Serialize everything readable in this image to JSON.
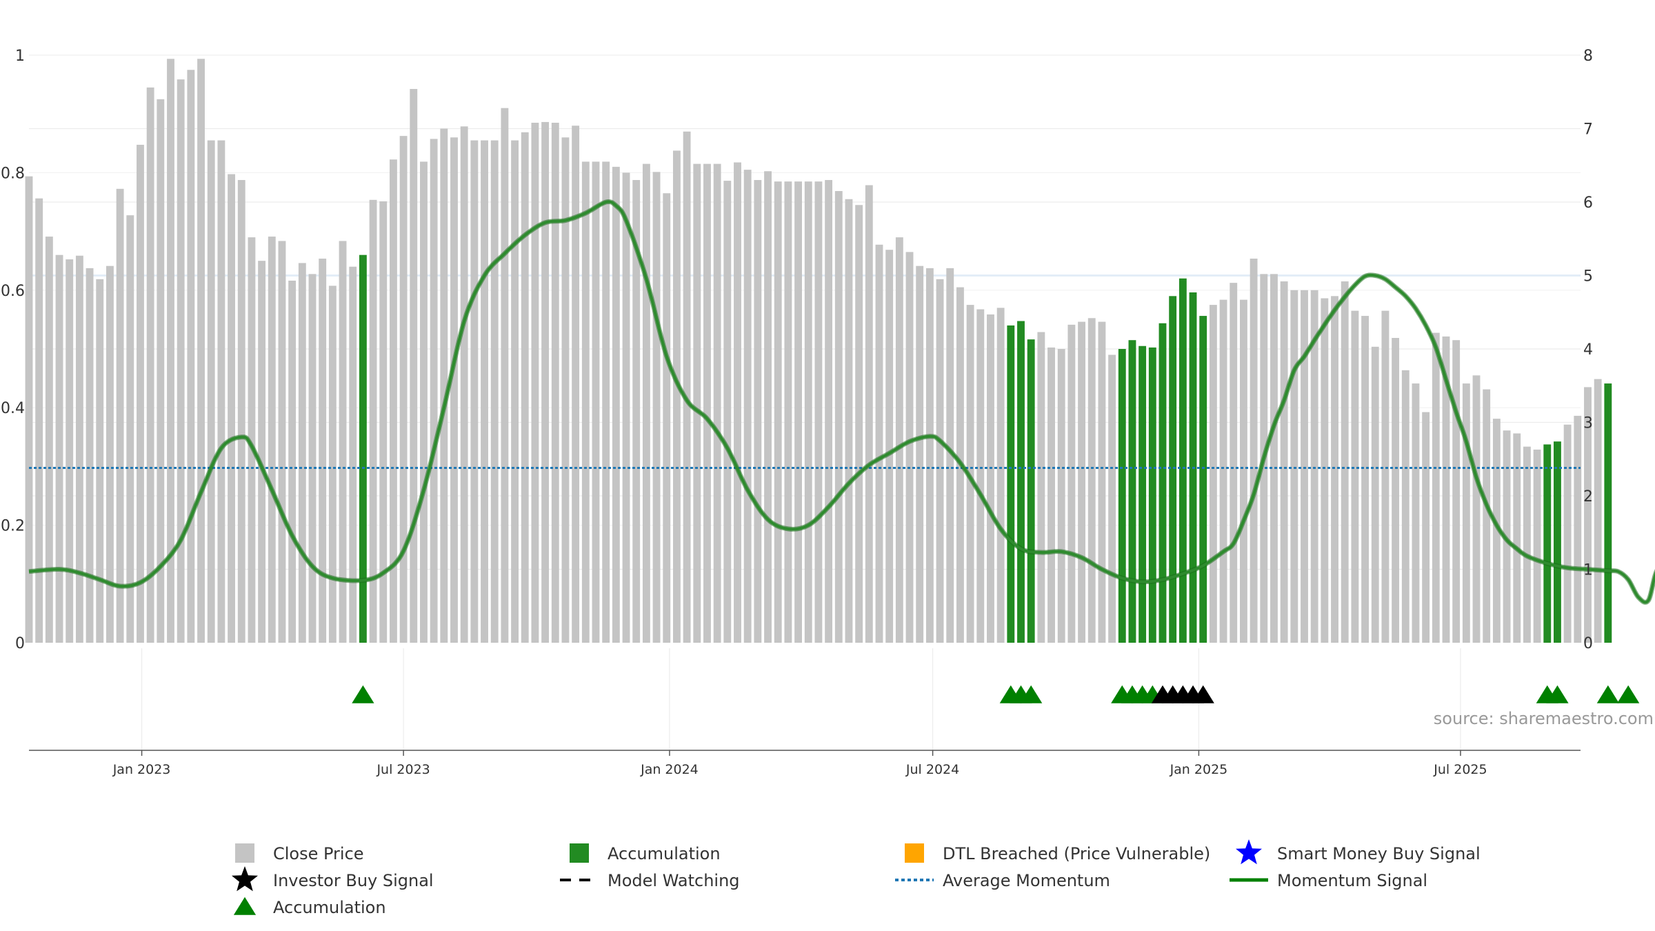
{
  "chart_data": {
    "type": "bar",
    "source": "source: sharemaestro.com",
    "left_axis": {
      "ticks": [
        0,
        0.2,
        0.4,
        0.6,
        0.8,
        1
      ],
      "tick_labels": [
        "0",
        "0.2",
        "0.4",
        "0.6",
        "0.8",
        "1"
      ],
      "ylim": [
        0,
        1
      ]
    },
    "right_axis": {
      "ticks": [
        0,
        1,
        2,
        3,
        4,
        5,
        6,
        7,
        8
      ],
      "tick_labels": [
        "0",
        "1",
        "2",
        "3",
        "4",
        "5",
        "6",
        "7",
        "8"
      ],
      "ylim": [
        0,
        8
      ]
    },
    "x_axis": {
      "start": "2022-10-15",
      "end": "2025-09-22",
      "ticks": [
        {
          "date": "2023-01-01",
          "label": "Jan 2023"
        },
        {
          "date": "2023-07-01",
          "label": "Jul 2023"
        },
        {
          "date": "2024-01-01",
          "label": "Jan 2024"
        },
        {
          "date": "2024-07-01",
          "label": "Jul 2024"
        },
        {
          "date": "2025-01-01",
          "label": "Jan 2025"
        },
        {
          "date": "2025-07-01",
          "label": "Jul 2025"
        }
      ]
    },
    "grid": true,
    "colors": {
      "close_price": "#c4c4c4",
      "accumulation": "#228b22",
      "dtl_breached": "#ffa500",
      "smart_money": "#0000ff",
      "investor_buy": "#000000",
      "average_momentum": "#1f77b4",
      "momentum": "#2e8b2e"
    },
    "bars": {
      "start_date": "2022-10-15",
      "step_days": 7,
      "close": [
        6.35,
        6.05,
        5.53,
        5.28,
        5.22,
        5.27,
        5.1,
        4.95,
        5.13,
        6.18,
        5.82,
        6.78,
        7.56,
        7.4,
        7.95,
        7.67,
        7.8,
        7.95,
        6.84,
        6.84,
        6.38,
        6.3,
        5.52,
        5.2,
        5.53,
        5.47,
        4.93,
        5.17,
        5.02,
        5.23,
        4.86,
        5.47,
        5.12,
        5.28,
        6.03,
        6.01,
        6.58,
        6.9,
        7.54,
        6.55,
        6.86,
        7.0,
        6.88,
        7.03,
        6.84,
        6.84,
        6.84,
        7.28,
        6.84,
        6.95,
        7.08,
        7.09,
        7.08,
        6.88,
        7.04,
        6.55,
        6.55,
        6.55,
        6.48,
        6.4,
        6.3,
        6.52,
        6.41,
        6.12,
        6.7,
        6.96,
        6.52,
        6.52,
        6.52,
        6.29,
        6.54,
        6.44,
        6.3,
        6.42,
        6.28,
        6.28,
        6.28,
        6.28,
        6.28,
        6.3,
        6.15,
        6.04,
        5.96,
        6.23,
        5.42,
        5.35,
        5.52,
        5.32,
        5.13,
        5.1,
        4.95,
        5.1,
        4.84,
        4.6,
        4.54,
        4.47,
        4.56,
        4.32,
        4.38,
        4.13,
        4.23,
        4.02,
        4.0,
        4.33,
        4.37,
        4.42,
        4.37,
        3.92,
        4.0,
        4.12,
        4.04,
        4.02,
        4.35,
        4.72,
        4.96,
        4.77,
        4.45,
        4.6,
        4.67,
        4.9,
        4.67,
        5.23,
        5.02,
        5.02,
        4.92,
        4.8,
        4.8,
        4.8,
        4.69,
        4.72,
        4.92,
        4.52,
        4.45,
        4.03,
        4.52,
        4.15,
        3.71,
        3.53,
        3.14,
        4.22,
        4.17,
        4.12,
        3.53,
        3.64,
        3.45,
        3.05,
        2.89,
        2.85,
        2.67,
        2.63,
        2.7,
        2.74,
        2.97,
        3.09,
        3.48,
        3.59,
        3.53
      ],
      "accumulation_indices": [
        33,
        97,
        98,
        99,
        108,
        109,
        110,
        111,
        112,
        113,
        114,
        115,
        116,
        150,
        151,
        156,
        158
      ]
    },
    "momentum": {
      "points": [
        [
          0,
          0.97
        ],
        [
          3,
          1.0
        ],
        [
          5,
          0.95
        ],
        [
          7,
          0.86
        ],
        [
          9,
          0.77
        ],
        [
          11,
          0.82
        ],
        [
          13,
          1.04
        ],
        [
          15,
          1.4
        ],
        [
          17,
          2.05
        ],
        [
          19,
          2.65
        ],
        [
          21,
          2.8
        ],
        [
          22,
          2.68
        ],
        [
          24,
          2.08
        ],
        [
          26,
          1.46
        ],
        [
          28,
          1.04
        ],
        [
          30,
          0.88
        ],
        [
          33,
          0.85
        ],
        [
          35,
          0.95
        ],
        [
          37,
          1.25
        ],
        [
          39,
          2.08
        ],
        [
          41,
          3.2
        ],
        [
          43,
          4.38
        ],
        [
          45,
          5.0
        ],
        [
          47,
          5.3
        ],
        [
          49,
          5.55
        ],
        [
          51,
          5.72
        ],
        [
          53,
          5.75
        ],
        [
          55,
          5.85
        ],
        [
          57,
          6.0
        ],
        [
          58,
          5.95
        ],
        [
          59,
          5.75
        ],
        [
          61,
          4.95
        ],
        [
          63,
          3.9
        ],
        [
          65,
          3.3
        ],
        [
          67,
          3.05
        ],
        [
          69,
          2.65
        ],
        [
          71,
          2.08
        ],
        [
          73,
          1.68
        ],
        [
          75,
          1.55
        ],
        [
          77,
          1.6
        ],
        [
          79,
          1.85
        ],
        [
          81,
          2.17
        ],
        [
          83,
          2.42
        ],
        [
          85,
          2.58
        ],
        [
          87,
          2.74
        ],
        [
          89,
          2.81
        ],
        [
          90,
          2.75
        ],
        [
          92,
          2.45
        ],
        [
          94,
          2.02
        ],
        [
          96,
          1.55
        ],
        [
          98,
          1.28
        ],
        [
          100,
          1.23
        ],
        [
          102,
          1.24
        ],
        [
          104,
          1.16
        ],
        [
          106,
          1.0
        ],
        [
          108,
          0.88
        ],
        [
          110,
          0.83
        ],
        [
          112,
          0.86
        ],
        [
          114,
          0.94
        ],
        [
          116,
          1.05
        ],
        [
          118,
          1.24
        ],
        [
          119,
          1.35
        ],
        [
          120,
          1.66
        ],
        [
          121,
          2.02
        ],
        [
          122,
          2.52
        ],
        [
          123,
          2.96
        ],
        [
          124,
          3.3
        ],
        [
          125,
          3.71
        ],
        [
          126,
          3.9
        ],
        [
          127,
          4.12
        ],
        [
          128,
          4.33
        ],
        [
          129,
          4.53
        ],
        [
          130,
          4.71
        ],
        [
          131,
          4.87
        ],
        [
          132,
          4.99
        ],
        [
          133,
          5.0
        ],
        [
          134,
          4.95
        ],
        [
          135,
          4.84
        ],
        [
          136,
          4.72
        ],
        [
          137,
          4.55
        ],
        [
          138,
          4.32
        ],
        [
          139,
          4.02
        ],
        [
          140,
          3.58
        ],
        [
          141,
          3.14
        ],
        [
          142,
          2.74
        ],
        [
          143,
          2.25
        ],
        [
          144,
          1.88
        ],
        [
          145,
          1.6
        ],
        [
          146,
          1.4
        ],
        [
          147,
          1.28
        ],
        [
          148,
          1.18
        ],
        [
          150,
          1.08
        ],
        [
          152,
          1.02
        ],
        [
          154,
          1.0
        ],
        [
          156,
          0.98
        ],
        [
          157,
          0.97
        ],
        [
          158,
          0.86
        ],
        [
          159,
          0.62
        ],
        [
          160,
          0.58
        ],
        [
          161,
          1.02
        ],
        [
          163,
          1.03
        ]
      ],
      "average": 2.38
    },
    "markers": {
      "accumulation_triangles": [
        33,
        97,
        98,
        99,
        108,
        109,
        110,
        111,
        150,
        151,
        156,
        158
      ],
      "investor_buy_triangles": [
        112,
        113,
        114,
        115,
        116
      ]
    },
    "legend": [
      {
        "label": "Close Price",
        "symbol": "square",
        "color": "#c4c4c4"
      },
      {
        "label": "Accumulation",
        "symbol": "square",
        "color": "#228b22"
      },
      {
        "label": "DTL Breached (Price Vulnerable)",
        "symbol": "square",
        "color": "#ffa500"
      },
      {
        "label": "Smart Money Buy Signal",
        "symbol": "star",
        "color": "#0000ff"
      },
      {
        "label": "Investor Buy Signal",
        "symbol": "star",
        "color": "#000000"
      },
      {
        "label": "Model Watching",
        "symbol": "dashed-line",
        "color": "#000000"
      },
      {
        "label": "Average Momentum",
        "symbol": "dotted-line",
        "color": "#1f77b4"
      },
      {
        "label": "Momentum Signal",
        "symbol": "solid-line",
        "color": "#008000"
      },
      {
        "label": "Accumulation",
        "symbol": "triangle",
        "color": "#008000"
      }
    ]
  }
}
